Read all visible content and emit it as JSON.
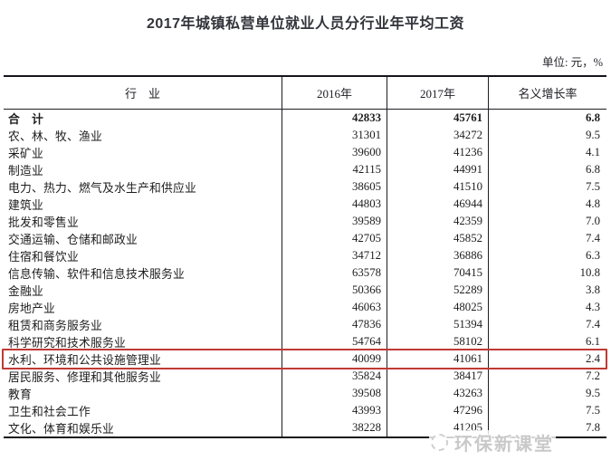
{
  "page": {
    "title": "2017年城镇私营单位就业人员分行业年平均工资",
    "unit_label": "单位: 元，%"
  },
  "table": {
    "headers": [
      "行　业",
      "2016年",
      "2017年",
      "名义增长率"
    ],
    "rows": [
      {
        "industry": "合　计",
        "y2016": "42833",
        "y2017": "45761",
        "growth": "6.8",
        "bold": true,
        "highlighted": false
      },
      {
        "industry": "农、林、牧、渔业",
        "y2016": "31301",
        "y2017": "34272",
        "growth": "9.5",
        "bold": false,
        "highlighted": false
      },
      {
        "industry": "采矿业",
        "y2016": "39600",
        "y2017": "41236",
        "growth": "4.1",
        "bold": false,
        "highlighted": false
      },
      {
        "industry": "制造业",
        "y2016": "42115",
        "y2017": "44991",
        "growth": "6.8",
        "bold": false,
        "highlighted": false
      },
      {
        "industry": "电力、热力、燃气及水生产和供应业",
        "y2016": "38605",
        "y2017": "41510",
        "growth": "7.5",
        "bold": false,
        "highlighted": false
      },
      {
        "industry": "建筑业",
        "y2016": "44803",
        "y2017": "46944",
        "growth": "4.8",
        "bold": false,
        "highlighted": false
      },
      {
        "industry": "批发和零售业",
        "y2016": "39589",
        "y2017": "42359",
        "growth": "7.0",
        "bold": false,
        "highlighted": false
      },
      {
        "industry": "交通运输、仓储和邮政业",
        "y2016": "42705",
        "y2017": "45852",
        "growth": "7.4",
        "bold": false,
        "highlighted": false
      },
      {
        "industry": "住宿和餐饮业",
        "y2016": "34712",
        "y2017": "36886",
        "growth": "6.3",
        "bold": false,
        "highlighted": false
      },
      {
        "industry": "信息传输、软件和信息技术服务业",
        "y2016": "63578",
        "y2017": "70415",
        "growth": "10.8",
        "bold": false,
        "highlighted": false
      },
      {
        "industry": "金融业",
        "y2016": "50366",
        "y2017": "52289",
        "growth": "3.8",
        "bold": false,
        "highlighted": false
      },
      {
        "industry": "房地产业",
        "y2016": "46063",
        "y2017": "48025",
        "growth": "4.3",
        "bold": false,
        "highlighted": false
      },
      {
        "industry": "租赁和商务服务业",
        "y2016": "47836",
        "y2017": "51394",
        "growth": "7.4",
        "bold": false,
        "highlighted": false
      },
      {
        "industry": "科学研究和技术服务业",
        "y2016": "54764",
        "y2017": "58102",
        "growth": "6.1",
        "bold": false,
        "highlighted": false
      },
      {
        "industry": "水利、环境和公共设施管理业",
        "y2016": "40099",
        "y2017": "41061",
        "growth": "2.4",
        "bold": false,
        "highlighted": true
      },
      {
        "industry": "居民服务、修理和其他服务业",
        "y2016": "35824",
        "y2017": "38417",
        "growth": "7.2",
        "bold": false,
        "highlighted": false
      },
      {
        "industry": "教育",
        "y2016": "39508",
        "y2017": "43263",
        "growth": "9.5",
        "bold": false,
        "highlighted": false
      },
      {
        "industry": "卫生和社会工作",
        "y2016": "43993",
        "y2017": "47296",
        "growth": "7.5",
        "bold": false,
        "highlighted": false
      },
      {
        "industry": "文化、体育和娱乐业",
        "y2016": "38228",
        "y2017": "41205",
        "growth": "7.8",
        "bold": false,
        "highlighted": false
      }
    ]
  },
  "highlight": {
    "row_industry": "水利、环境和公共设施管理业",
    "border_color": "#bf3a34"
  },
  "watermark": {
    "text": "环保新课堂"
  },
  "colors": {
    "text": "#1d1d1d",
    "title": "#33343b",
    "border": "#15151a",
    "highlight_red": "#bf3a34",
    "watermark_gray": "#c9c9c9"
  }
}
